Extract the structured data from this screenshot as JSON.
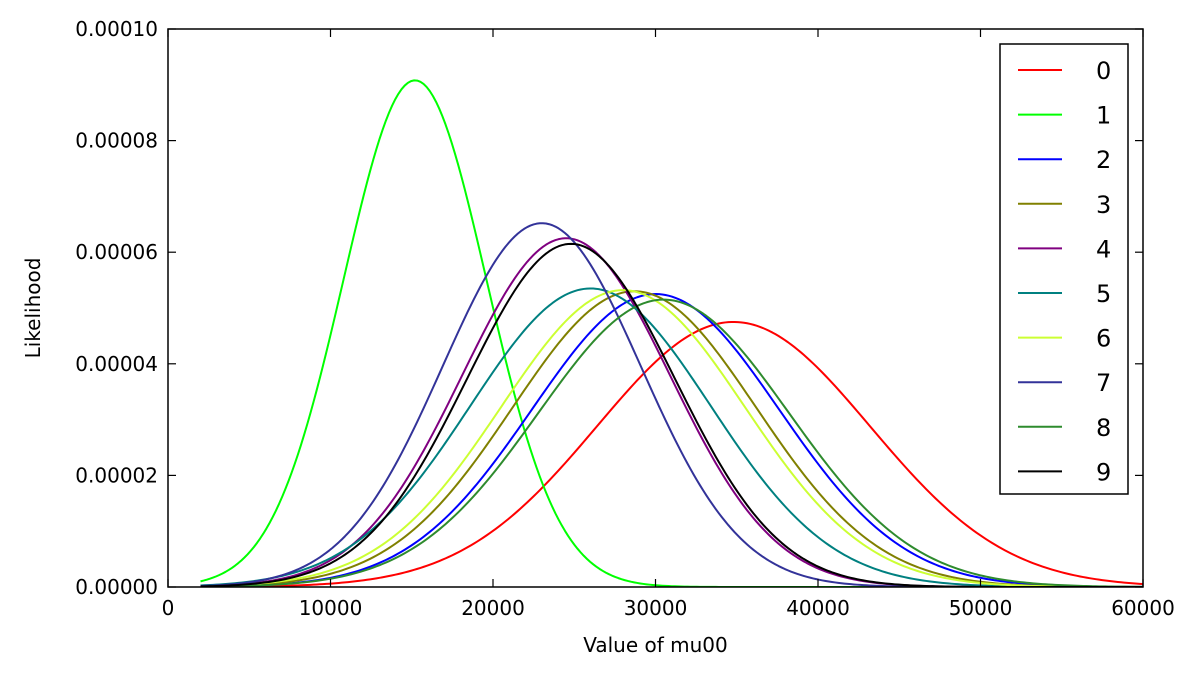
{
  "chart_data": {
    "type": "line",
    "title": "",
    "xlabel": "Value of mu00",
    "ylabel": "Likelihood",
    "xlim": [
      0,
      60000
    ],
    "ylim": [
      0,
      0.0001
    ],
    "x_ticks": [
      0,
      10000,
      20000,
      30000,
      40000,
      50000,
      60000
    ],
    "x_tick_labels": [
      "0",
      "10000",
      "20000",
      "30000",
      "40000",
      "50000",
      "60000"
    ],
    "y_ticks": [
      0,
      2e-05,
      4e-05,
      6e-05,
      8e-05,
      0.0001
    ],
    "y_tick_labels": [
      "0.00000",
      "0.00002",
      "0.00004",
      "0.00006",
      "0.00008",
      "0.00010"
    ],
    "x_range": [
      2000,
      60000
    ],
    "grid": false,
    "legend_position": "top-right",
    "series": [
      {
        "name": "0",
        "color": "#ff0000",
        "peak_x": 34800,
        "peak_y": 4.75e-05,
        "sigma_left": 8400,
        "sigma_right": 8400
      },
      {
        "name": "1",
        "color": "#00ff00",
        "peak_x": 15200,
        "peak_y": 9.08e-05,
        "sigma_left": 4400,
        "sigma_right": 4400
      },
      {
        "name": "2",
        "color": "#0000ff",
        "peak_x": 30000,
        "peak_y": 5.25e-05,
        "sigma_left": 7600,
        "sigma_right": 7600
      },
      {
        "name": "3",
        "color": "#808000",
        "peak_x": 28700,
        "peak_y": 5.3e-05,
        "sigma_left": 7500,
        "sigma_right": 7500
      },
      {
        "name": "4",
        "color": "#800080",
        "peak_x": 24500,
        "peak_y": 6.25e-05,
        "sigma_left": 6400,
        "sigma_right": 6400
      },
      {
        "name": "5",
        "color": "#008080",
        "peak_x": 26000,
        "peak_y": 5.35e-05,
        "sigma_left": 7400,
        "sigma_right": 7400
      },
      {
        "name": "6",
        "color": "#ccff33",
        "peak_x": 28000,
        "peak_y": 5.32e-05,
        "sigma_left": 7500,
        "sigma_right": 7500
      },
      {
        "name": "7",
        "color": "#333399",
        "peak_x": 23000,
        "peak_y": 6.52e-05,
        "sigma_left": 6100,
        "sigma_right": 6100
      },
      {
        "name": "8",
        "color": "#2e8b2e",
        "peak_x": 30500,
        "peak_y": 5.15e-05,
        "sigma_left": 7700,
        "sigma_right": 7700
      },
      {
        "name": "9",
        "color": "#000000",
        "peak_x": 24800,
        "peak_y": 6.15e-05,
        "sigma_left": 6400,
        "sigma_right": 6400
      }
    ]
  }
}
